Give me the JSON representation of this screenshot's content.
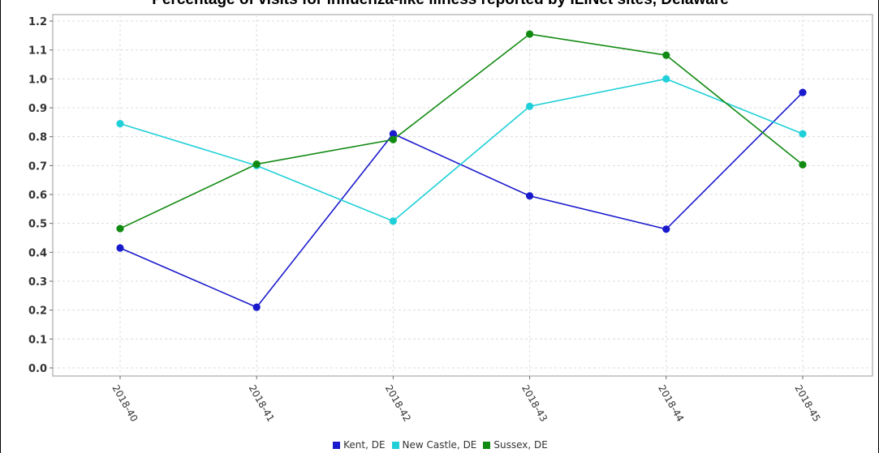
{
  "chart_data": {
    "type": "line",
    "title": "Percentage of visits for influenza-like illness reported by ILINet sites, Delaware",
    "xlabel": "",
    "ylabel": "",
    "categories": [
      "2018-40",
      "2018-41",
      "2018-42",
      "2018-43",
      "2018-44",
      "2018-45"
    ],
    "ylim": [
      0,
      1.2
    ],
    "yticks": [
      "0.0",
      "0.1",
      "0.2",
      "0.3",
      "0.4",
      "0.5",
      "0.6",
      "0.7",
      "0.8",
      "0.9",
      "1.0",
      "1.1",
      "1.2"
    ],
    "grid": true,
    "legend_position": "bottom",
    "series": [
      {
        "name": "Kent, DE",
        "color": "#1a1acd",
        "values": [
          0.415,
          0.21,
          0.81,
          0.595,
          0.48,
          0.953
        ]
      },
      {
        "name": "New Castle, DE",
        "color": "#20d0d8",
        "values": [
          0.845,
          0.7,
          0.508,
          0.905,
          1.0,
          0.81
        ]
      },
      {
        "name": "Sussex, DE",
        "color": "#118a11",
        "values": [
          0.482,
          0.705,
          0.79,
          1.155,
          1.082,
          0.703
        ]
      }
    ]
  }
}
